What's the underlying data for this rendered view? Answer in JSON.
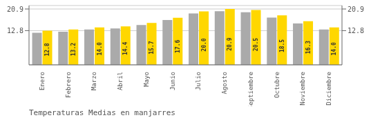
{
  "chart_data": {
    "type": "bar",
    "title": "Temperaturas Medias en manjarres",
    "categories": [
      "Enero",
      "Febrero",
      "Marzo",
      "Abril",
      "Mayo",
      "Junio",
      "Julio",
      "Agosto",
      "Septiembre",
      "Octubre",
      "Noviembre",
      "Diciembre"
    ],
    "series": [
      {
        "color": "#AAAAAA",
        "values": [
          12.0,
          12.4,
          13.2,
          13.6,
          14.9,
          16.8,
          19.2,
          20.1,
          19.7,
          17.7,
          15.5,
          13.2
        ]
      },
      {
        "color": "#FFD700",
        "values": [
          12.8,
          13.2,
          14.0,
          14.4,
          15.7,
          17.6,
          20.0,
          20.9,
          20.5,
          18.5,
          16.3,
          14.0
        ],
        "data_labels": true,
        "value_labels": [
          "12.8",
          "13.2",
          "14.0",
          "14.4",
          "15.7",
          "17.6",
          "20.0",
          "20.9",
          "20.5",
          "18.5",
          "16.3",
          "14.0"
        ]
      }
    ],
    "ylim": [
      0,
      22.2
    ],
    "yticks": [
      12.8,
      20.9
    ],
    "y2lim": [
      0,
      22.2
    ],
    "y2ticks": [
      12.8,
      20.9
    ],
    "grid": true
  }
}
